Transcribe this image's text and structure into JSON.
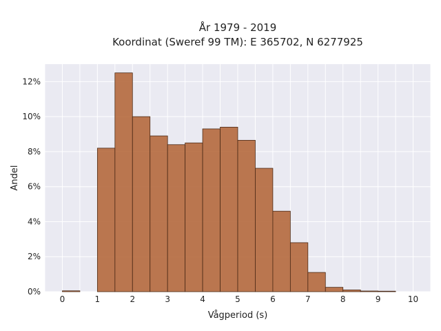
{
  "chart_data": {
    "type": "bar",
    "title_line1": "År 1979 - 2019",
    "title_line2": "Koordinat (Sweref 99 TM): E 365702, N 6277925",
    "xlabel": "Vågperiod (s)",
    "ylabel": "Andel",
    "xlim": [
      -0.5,
      10.5
    ],
    "ylim": [
      0,
      13
    ],
    "xticks": [
      0,
      1,
      2,
      3,
      4,
      5,
      6,
      7,
      8,
      9,
      10
    ],
    "xtick_labels": [
      "0",
      "1",
      "2",
      "3",
      "4",
      "5",
      "6",
      "7",
      "8",
      "9",
      "10"
    ],
    "yticks": [
      0,
      2,
      4,
      6,
      8,
      10,
      12
    ],
    "ytick_labels": [
      "0%",
      "2%",
      "4%",
      "6%",
      "8%",
      "10%",
      "12%"
    ],
    "bin_width": 0.5,
    "bins": [
      {
        "x0": 0.0,
        "value": 0.05
      },
      {
        "x0": 1.0,
        "value": 8.2
      },
      {
        "x0": 1.5,
        "value": 12.5
      },
      {
        "x0": 2.0,
        "value": 10.0
      },
      {
        "x0": 2.5,
        "value": 8.9
      },
      {
        "x0": 3.0,
        "value": 8.4
      },
      {
        "x0": 3.5,
        "value": 8.5
      },
      {
        "x0": 4.0,
        "value": 9.3
      },
      {
        "x0": 4.5,
        "value": 9.4
      },
      {
        "x0": 5.0,
        "value": 8.65
      },
      {
        "x0": 5.5,
        "value": 7.05
      },
      {
        "x0": 6.0,
        "value": 4.6
      },
      {
        "x0": 6.5,
        "value": 2.8
      },
      {
        "x0": 7.0,
        "value": 1.1
      },
      {
        "x0": 7.5,
        "value": 0.25
      },
      {
        "x0": 8.0,
        "value": 0.1
      },
      {
        "x0": 8.5,
        "value": 0.04
      },
      {
        "x0": 9.0,
        "value": 0.03
      }
    ],
    "bar_color": "#b5693d",
    "plot_background": "#eaeaf2",
    "grid": true,
    "legend": false
  }
}
